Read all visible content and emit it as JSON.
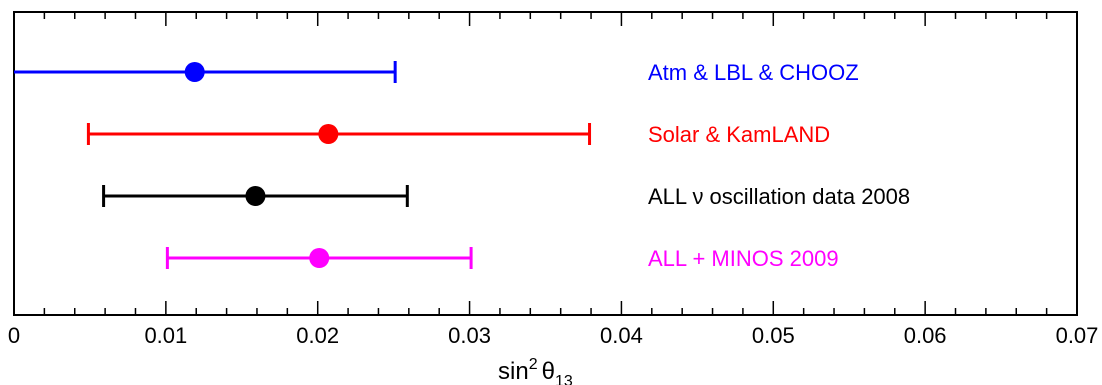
{
  "chart_data": {
    "type": "scatter",
    "xlabel": {
      "base": "sin",
      "sup": "2",
      "symbol": "θ",
      "sub": "13"
    },
    "xlim": [
      0,
      0.07
    ],
    "xticks": [
      0,
      0.01,
      0.02,
      0.03,
      0.04,
      0.05,
      0.06,
      0.07
    ],
    "xtick_labels": [
      "0",
      "0.01",
      "0.02",
      "0.03",
      "0.04",
      "0.05",
      "0.06",
      "0.07"
    ],
    "minor_tick_step": 0.002,
    "grid": false,
    "legend_placement": "right, beside each error bar",
    "series": [
      {
        "name": "Atm & LBL & CHOOZ",
        "color": "#0000ff",
        "value": 0.0119,
        "lower": 0.0,
        "upper": 0.0251,
        "lower_capped": false
      },
      {
        "name": "Solar & KamLAND",
        "color": "#ff0000",
        "value": 0.0207,
        "lower": 0.0049,
        "upper": 0.0379,
        "lower_capped": true
      },
      {
        "name": "ALL ν oscillation data 2008",
        "color": "#000000",
        "value": 0.0159,
        "lower": 0.0059,
        "upper": 0.0259,
        "lower_capped": true
      },
      {
        "name": "ALL + MINOS 2009",
        "color": "#ff00ff",
        "value": 0.0201,
        "lower": 0.0101,
        "upper": 0.0301,
        "lower_capped": true
      }
    ]
  }
}
